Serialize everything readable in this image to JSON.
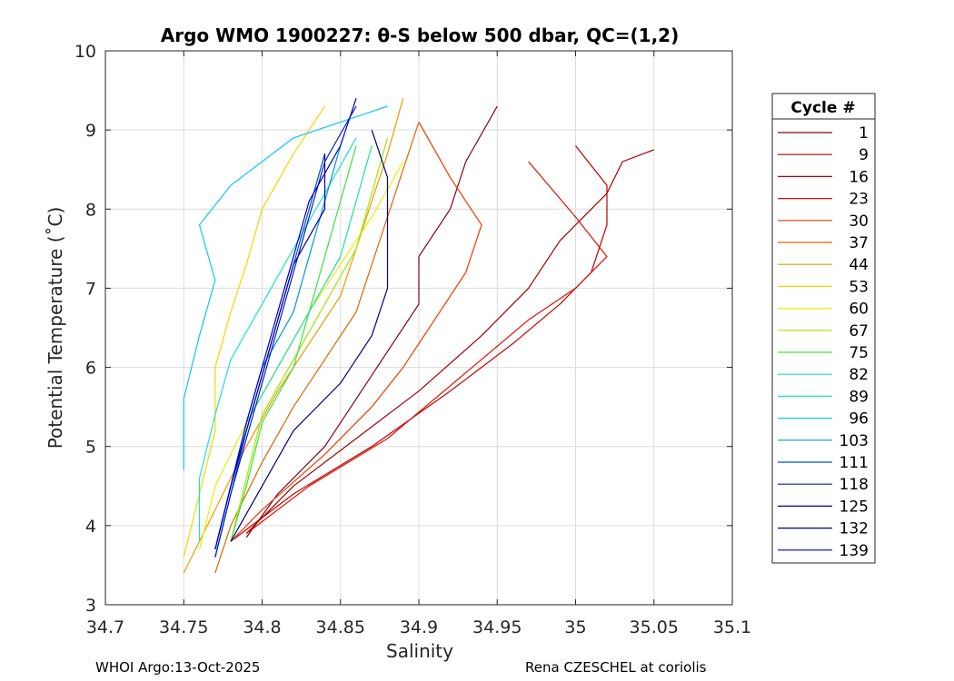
{
  "chart_data": {
    "type": "line",
    "title": "Argo WMO 1900227: θ-S below 500 dbar,  QC=(1,2)",
    "xlabel": "Salinity",
    "ylabel": "Potential Temperature (˚C)",
    "xlim": [
      34.7,
      35.1
    ],
    "ylim": [
      3,
      10
    ],
    "xticks": [
      34.7,
      34.75,
      34.8,
      34.85,
      34.9,
      34.95,
      35,
      35.05,
      35.1
    ],
    "xtick_labels": [
      "34.7",
      "34.75",
      "34.8",
      "34.85",
      "34.9",
      "34.95",
      "35",
      "35.05",
      "35.1"
    ],
    "yticks": [
      3,
      4,
      5,
      6,
      7,
      8,
      9,
      10
    ],
    "ytick_labels": [
      "3",
      "4",
      "5",
      "6",
      "7",
      "8",
      "9",
      "10"
    ],
    "grid": true,
    "legend": {
      "title": "Cycle #",
      "placement": "right-outside",
      "entries": [
        {
          "label": "1",
          "color": "#80001a"
        },
        {
          "label": "9",
          "color": "#a00000"
        },
        {
          "label": "16",
          "color": "#c00000"
        },
        {
          "label": "23",
          "color": "#e01000"
        },
        {
          "label": "30",
          "color": "#f03a00"
        },
        {
          "label": "37",
          "color": "#d86800"
        },
        {
          "label": "44",
          "color": "#f09800"
        },
        {
          "label": "53",
          "color": "#f0d800"
        },
        {
          "label": "60",
          "color": "#e8f000"
        },
        {
          "label": "67",
          "color": "#a0e800"
        },
        {
          "label": "75",
          "color": "#40e040"
        },
        {
          "label": "82",
          "color": "#20e0a0"
        },
        {
          "label": "89",
          "color": "#20e0d0"
        },
        {
          "label": "96",
          "color": "#10c8f0"
        },
        {
          "label": "103",
          "color": "#0098e0"
        },
        {
          "label": "111",
          "color": "#0050d0"
        },
        {
          "label": "118",
          "color": "#0020b0"
        },
        {
          "label": "125",
          "color": "#0000a0"
        },
        {
          "label": "132",
          "color": "#000080"
        },
        {
          "label": "139",
          "color": "#0000c8"
        }
      ]
    },
    "series": [
      {
        "name": "1",
        "color": "#80001a",
        "points": [
          [
            34.79,
            3.85
          ],
          [
            34.81,
            4.4
          ],
          [
            34.84,
            5.0
          ],
          [
            34.86,
            5.6
          ],
          [
            34.88,
            6.2
          ],
          [
            34.9,
            6.8
          ],
          [
            34.9,
            7.4
          ],
          [
            34.92,
            8.0
          ],
          [
            34.93,
            8.6
          ],
          [
            34.95,
            9.3
          ]
        ]
      },
      {
        "name": "9",
        "color": "#a00000",
        "points": [
          [
            34.79,
            3.9
          ],
          [
            34.82,
            4.5
          ],
          [
            34.86,
            5.1
          ],
          [
            34.9,
            5.7
          ],
          [
            34.94,
            6.4
          ],
          [
            34.97,
            7.0
          ],
          [
            34.99,
            7.6
          ],
          [
            35.02,
            8.2
          ],
          [
            35.03,
            8.6
          ],
          [
            35.05,
            8.75
          ]
        ]
      },
      {
        "name": "16",
        "color": "#c00000",
        "points": [
          [
            34.78,
            3.8
          ],
          [
            34.82,
            4.4
          ],
          [
            34.87,
            5.0
          ],
          [
            34.92,
            5.7
          ],
          [
            34.96,
            6.3
          ],
          [
            34.99,
            6.8
          ],
          [
            35.01,
            7.2
          ],
          [
            35.02,
            7.8
          ],
          [
            35.02,
            8.3
          ],
          [
            35.0,
            8.8
          ]
        ]
      },
      {
        "name": "23",
        "color": "#e01000",
        "points": [
          [
            34.79,
            3.9
          ],
          [
            34.83,
            4.5
          ],
          [
            34.88,
            5.1
          ],
          [
            34.91,
            5.6
          ],
          [
            34.94,
            6.1
          ],
          [
            34.97,
            6.6
          ],
          [
            35.0,
            7.0
          ],
          [
            35.02,
            7.4
          ],
          [
            35.0,
            7.9
          ],
          [
            34.97,
            8.6
          ]
        ]
      },
      {
        "name": "30",
        "color": "#f03a00",
        "points": [
          [
            34.78,
            3.8
          ],
          [
            34.8,
            4.2
          ],
          [
            34.84,
            4.9
          ],
          [
            34.87,
            5.5
          ],
          [
            34.89,
            6.0
          ],
          [
            34.91,
            6.6
          ],
          [
            34.93,
            7.2
          ],
          [
            34.94,
            7.8
          ],
          [
            34.92,
            8.4
          ],
          [
            34.9,
            9.1
          ]
        ]
      },
      {
        "name": "37",
        "color": "#d86800",
        "points": [
          [
            34.77,
            3.4
          ],
          [
            34.78,
            4.0
          ],
          [
            34.8,
            4.8
          ],
          [
            34.82,
            5.5
          ],
          [
            34.84,
            6.1
          ],
          [
            34.86,
            6.7
          ],
          [
            34.87,
            7.3
          ],
          [
            34.88,
            7.9
          ],
          [
            34.89,
            8.5
          ],
          [
            34.9,
            9.1
          ]
        ]
      },
      {
        "name": "44",
        "color": "#f09800",
        "points": [
          [
            34.75,
            3.4
          ],
          [
            34.77,
            4.2
          ],
          [
            34.79,
            5.0
          ],
          [
            34.81,
            5.7
          ],
          [
            34.83,
            6.3
          ],
          [
            34.85,
            6.9
          ],
          [
            34.86,
            7.5
          ],
          [
            34.87,
            8.1
          ],
          [
            34.88,
            8.7
          ],
          [
            34.89,
            9.4
          ]
        ]
      },
      {
        "name": "53",
        "color": "#f0d800",
        "points": [
          [
            34.75,
            3.6
          ],
          [
            34.76,
            4.4
          ],
          [
            34.77,
            5.2
          ],
          [
            34.77,
            6.0
          ],
          [
            34.78,
            6.7
          ],
          [
            34.79,
            7.3
          ],
          [
            34.8,
            8.0
          ],
          [
            34.82,
            8.7
          ],
          [
            34.84,
            9.3
          ]
        ]
      },
      {
        "name": "60",
        "color": "#e8f000",
        "points": [
          [
            34.76,
            3.7
          ],
          [
            34.77,
            4.5
          ],
          [
            34.79,
            5.3
          ],
          [
            34.81,
            6.0
          ],
          [
            34.83,
            6.7
          ],
          [
            34.85,
            7.3
          ],
          [
            34.87,
            7.9
          ],
          [
            34.89,
            8.6
          ]
        ]
      },
      {
        "name": "67",
        "color": "#a0e800",
        "points": [
          [
            34.78,
            3.8
          ],
          [
            34.79,
            4.6
          ],
          [
            34.8,
            5.4
          ],
          [
            34.82,
            6.1
          ],
          [
            34.84,
            6.8
          ],
          [
            34.86,
            7.5
          ],
          [
            34.87,
            8.2
          ],
          [
            34.88,
            8.9
          ]
        ]
      },
      {
        "name": "75",
        "color": "#40e040",
        "points": [
          [
            34.78,
            3.8
          ],
          [
            34.79,
            4.5
          ],
          [
            34.8,
            5.3
          ],
          [
            34.82,
            6.0
          ],
          [
            34.83,
            6.7
          ],
          [
            34.84,
            7.4
          ],
          [
            34.85,
            8.1
          ],
          [
            34.86,
            8.8
          ]
        ]
      },
      {
        "name": "82",
        "color": "#20e0a0",
        "points": [
          [
            34.77,
            3.7
          ],
          [
            34.78,
            4.5
          ],
          [
            34.79,
            5.3
          ],
          [
            34.81,
            6.0
          ],
          [
            34.83,
            6.7
          ],
          [
            34.85,
            7.4
          ],
          [
            34.86,
            8.1
          ],
          [
            34.87,
            8.8
          ]
        ]
      },
      {
        "name": "89",
        "color": "#20e0d0",
        "points": [
          [
            34.76,
            3.8
          ],
          [
            34.76,
            4.6
          ],
          [
            34.77,
            5.4
          ],
          [
            34.78,
            6.1
          ],
          [
            34.8,
            6.8
          ],
          [
            34.82,
            7.5
          ],
          [
            34.84,
            8.2
          ],
          [
            34.86,
            8.9
          ]
        ]
      },
      {
        "name": "96",
        "color": "#10c8f0",
        "points": [
          [
            34.75,
            4.7
          ],
          [
            34.75,
            5.6
          ],
          [
            34.76,
            6.4
          ],
          [
            34.77,
            7.1
          ],
          [
            34.76,
            7.8
          ],
          [
            34.78,
            8.3
          ],
          [
            34.82,
            8.9
          ],
          [
            34.88,
            9.3
          ]
        ]
      },
      {
        "name": "103",
        "color": "#0098e0",
        "points": [
          [
            34.77,
            3.7
          ],
          [
            34.78,
            4.5
          ],
          [
            34.79,
            5.3
          ],
          [
            34.8,
            6.0
          ],
          [
            34.82,
            6.7
          ],
          [
            34.83,
            7.4
          ],
          [
            34.84,
            8.1
          ],
          [
            34.85,
            8.8
          ]
        ]
      },
      {
        "name": "111",
        "color": "#0050d0",
        "points": [
          [
            34.77,
            3.6
          ],
          [
            34.78,
            4.4
          ],
          [
            34.79,
            5.2
          ],
          [
            34.8,
            5.9
          ],
          [
            34.81,
            6.6
          ],
          [
            34.82,
            7.3
          ],
          [
            34.83,
            8.0
          ],
          [
            34.84,
            8.7
          ]
        ]
      },
      {
        "name": "118",
        "color": "#0020b0",
        "points": [
          [
            34.77,
            3.6
          ],
          [
            34.78,
            4.4
          ],
          [
            34.79,
            5.1
          ],
          [
            34.8,
            5.8
          ],
          [
            34.81,
            6.5
          ],
          [
            34.82,
            7.2
          ],
          [
            34.83,
            7.9
          ],
          [
            34.84,
            8.6
          ],
          [
            34.86,
            9.3
          ]
        ]
      },
      {
        "name": "125",
        "color": "#0000a0",
        "points": [
          [
            34.77,
            3.7
          ],
          [
            34.78,
            4.5
          ],
          [
            34.79,
            5.2
          ],
          [
            34.8,
            5.9
          ],
          [
            34.81,
            6.6
          ],
          [
            34.82,
            7.3
          ],
          [
            34.84,
            8.0
          ],
          [
            34.84,
            8.7
          ]
        ]
      },
      {
        "name": "132",
        "color": "#000080",
        "points": [
          [
            34.78,
            3.8
          ],
          [
            34.8,
            4.5
          ],
          [
            34.82,
            5.2
          ],
          [
            34.85,
            5.8
          ],
          [
            34.87,
            6.4
          ],
          [
            34.88,
            7.0
          ],
          [
            34.88,
            7.7
          ],
          [
            34.88,
            8.4
          ],
          [
            34.87,
            9.0
          ]
        ]
      },
      {
        "name": "139",
        "color": "#0000c8",
        "points": [
          [
            34.77,
            3.7
          ],
          [
            34.78,
            4.5
          ],
          [
            34.79,
            5.3
          ],
          [
            34.8,
            6.0
          ],
          [
            34.81,
            6.7
          ],
          [
            34.82,
            7.4
          ],
          [
            34.83,
            8.1
          ],
          [
            34.85,
            8.8
          ],
          [
            34.86,
            9.4
          ]
        ]
      }
    ]
  },
  "footer": {
    "left": "WHOI Argo:13-Oct-2025",
    "right": "Rena CZESCHEL at coriolis"
  }
}
